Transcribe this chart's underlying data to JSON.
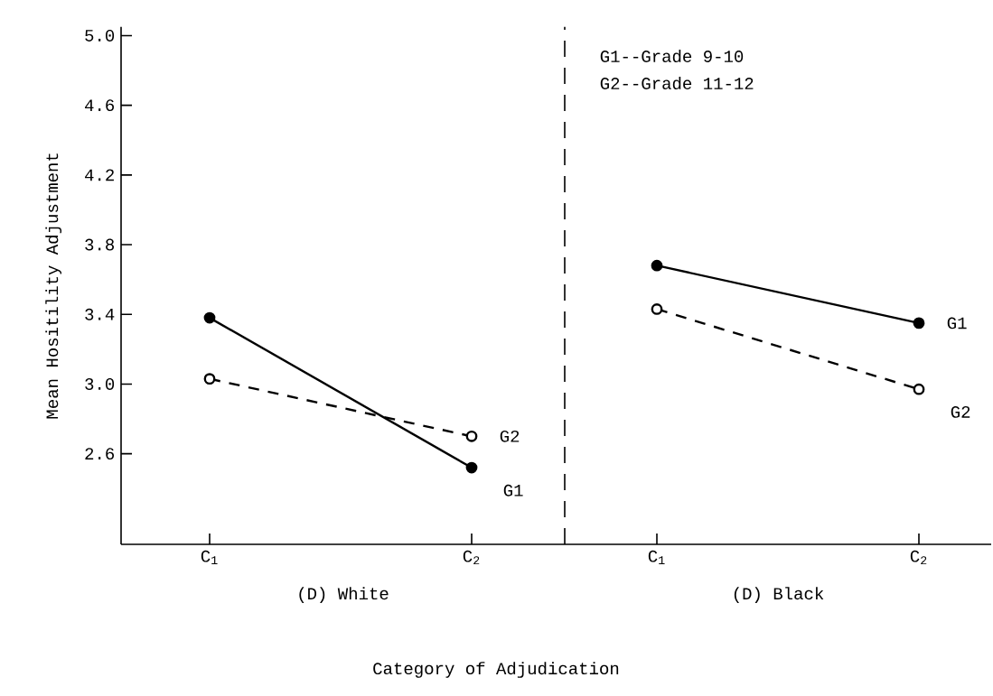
{
  "chart_data": [
    {
      "type": "line",
      "ylabel": "Mean Hositility Adjustment",
      "xlabel": "(D) White",
      "categories": [
        "C$_{1}$",
        "C$_{2}$"
      ],
      "ylim": [
        2.08,
        5.05
      ],
      "yticks": [
        2.6,
        {
          "value": 3.0,
          "label": "3.0"
        },
        3.4,
        3.8,
        4.2,
        4.6,
        {
          "value": 5.0,
          "label": "5.0"
        }
      ],
      "marker": "circle",
      "series": [
        {
          "name": "G1",
          "color": "#000000",
          "line_style": "solid",
          "values": [
            3.38,
            2.52
          ]
        },
        {
          "name": "G2",
          "color": "#000000",
          "line_style": "dashed",
          "values": [
            3.03,
            2.7
          ]
        }
      ],
      "annotations": [
        "Category of Adjudication"
      ]
    },
    {
      "type": "line",
      "xlabel": "(D) Black",
      "categories": [
        "C$_{1}$",
        "C$_{2}$"
      ],
      "ylim": [
        2.08,
        5.05
      ],
      "tick_labels": "x",
      "marker": "circle",
      "series": [
        {
          "name": "G1",
          "color": "#000000",
          "line_style": "solid",
          "values": [
            3.68,
            3.35
          ]
        },
        {
          "name": "G2",
          "color": "#000000",
          "line_style": "dashed",
          "values": [
            3.43,
            2.97
          ]
        }
      ],
      "annotations": [
        "G1--Grade 9-10",
        "G2--Grade 11-12"
      ]
    }
  ]
}
